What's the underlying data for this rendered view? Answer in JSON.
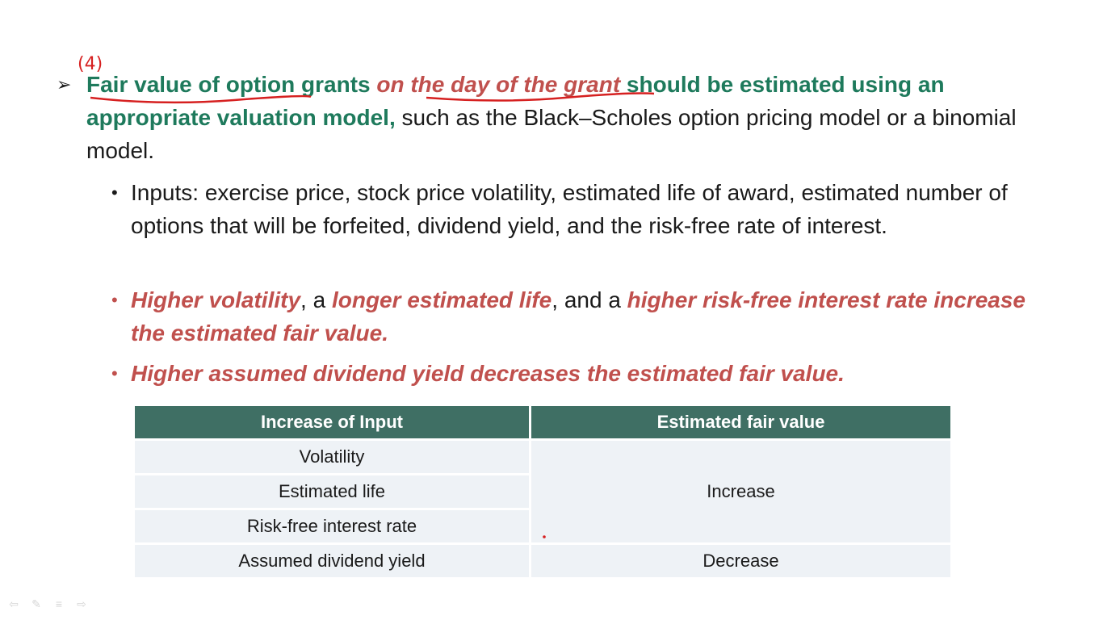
{
  "main_bullet": {
    "annotation_number": "(4)",
    "part1": "Fair value of option grants ",
    "part2": "on the day of the grant",
    "part3": " should be estimated using an appropriate valuation model,",
    "part4": " such as the Black–Scholes option pricing model or a binomial model."
  },
  "sub_bullets": {
    "inputs": "Inputs: exercise price, stock price volatility, estimated life of award, estimated number of options that will be forfeited, dividend yield, and the risk-free rate of interest.",
    "increase": {
      "a": "Higher volatility",
      "b": ", a ",
      "c": "longer estimated life",
      "d": ", and a ",
      "e": "higher risk-free interest rate increase the estimated fair value."
    },
    "decrease": "Higher assumed dividend yield decreases the estimated fair value."
  },
  "table": {
    "headers": [
      "Increase of Input",
      "Estimated fair value"
    ],
    "rows": [
      "Volatility",
      "Estimated life",
      "Risk-free interest rate",
      "Assumed dividend yield"
    ],
    "merged_value_increase": "Increase",
    "value_decrease": "Decrease"
  },
  "colors": {
    "green": "#1e7a5c",
    "red": "#c0504d",
    "table_header": "#3f6f64",
    "table_cell": "#eef2f6"
  }
}
